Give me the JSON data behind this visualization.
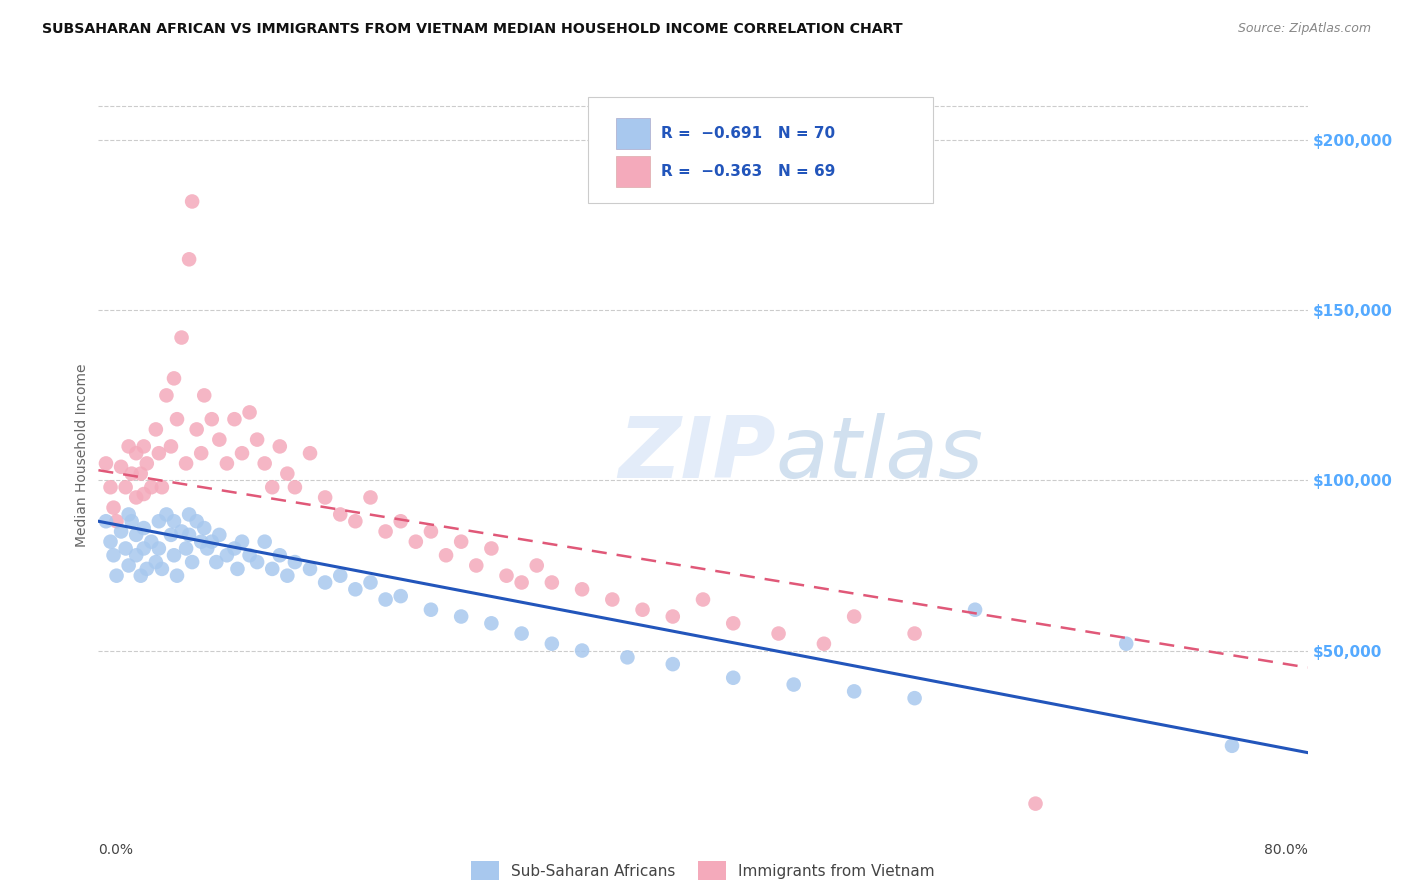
{
  "title": "SUBSAHARAN AFRICAN VS IMMIGRANTS FROM VIETNAM MEDIAN HOUSEHOLD INCOME CORRELATION CHART",
  "source": "Source: ZipAtlas.com",
  "ylabel": "Median Household Income",
  "xlim": [
    0.0,
    0.8
  ],
  "ylim": [
    0,
    215000
  ],
  "blue_color": "#A8C8EE",
  "blue_line_color": "#2255BB",
  "pink_color": "#F4AABB",
  "pink_line_color": "#E05878",
  "right_tick_color": "#55AAFF",
  "yticks": [
    0,
    50000,
    100000,
    150000,
    200000
  ],
  "right_labels": [
    "",
    "$50,000",
    "$100,000",
    "$150,000",
    "$200,000"
  ],
  "legend_label_blue": "R =  −0.691   N = 70",
  "legend_label_pink": "R =  −0.363   N = 69",
  "legend_color": "#2255BB",
  "blue_x": [
    0.005,
    0.008,
    0.01,
    0.012,
    0.015,
    0.018,
    0.02,
    0.02,
    0.022,
    0.025,
    0.025,
    0.028,
    0.03,
    0.03,
    0.032,
    0.035,
    0.038,
    0.04,
    0.04,
    0.042,
    0.045,
    0.048,
    0.05,
    0.05,
    0.052,
    0.055,
    0.058,
    0.06,
    0.06,
    0.062,
    0.065,
    0.068,
    0.07,
    0.072,
    0.075,
    0.078,
    0.08,
    0.085,
    0.09,
    0.092,
    0.095,
    0.1,
    0.105,
    0.11,
    0.115,
    0.12,
    0.125,
    0.13,
    0.14,
    0.15,
    0.16,
    0.17,
    0.18,
    0.19,
    0.2,
    0.22,
    0.24,
    0.26,
    0.28,
    0.3,
    0.32,
    0.35,
    0.38,
    0.42,
    0.46,
    0.5,
    0.54,
    0.58,
    0.68,
    0.75
  ],
  "blue_y": [
    88000,
    82000,
    78000,
    72000,
    85000,
    80000,
    90000,
    75000,
    88000,
    84000,
    78000,
    72000,
    86000,
    80000,
    74000,
    82000,
    76000,
    88000,
    80000,
    74000,
    90000,
    84000,
    88000,
    78000,
    72000,
    85000,
    80000,
    90000,
    84000,
    76000,
    88000,
    82000,
    86000,
    80000,
    82000,
    76000,
    84000,
    78000,
    80000,
    74000,
    82000,
    78000,
    76000,
    82000,
    74000,
    78000,
    72000,
    76000,
    74000,
    70000,
    72000,
    68000,
    70000,
    65000,
    66000,
    62000,
    60000,
    58000,
    55000,
    52000,
    50000,
    48000,
    46000,
    42000,
    40000,
    38000,
    36000,
    62000,
    52000,
    22000
  ],
  "pink_x": [
    0.005,
    0.008,
    0.01,
    0.012,
    0.015,
    0.018,
    0.02,
    0.022,
    0.025,
    0.025,
    0.028,
    0.03,
    0.03,
    0.032,
    0.035,
    0.038,
    0.04,
    0.042,
    0.045,
    0.048,
    0.05,
    0.052,
    0.055,
    0.058,
    0.06,
    0.062,
    0.065,
    0.068,
    0.07,
    0.075,
    0.08,
    0.085,
    0.09,
    0.095,
    0.1,
    0.105,
    0.11,
    0.115,
    0.12,
    0.125,
    0.13,
    0.14,
    0.15,
    0.16,
    0.17,
    0.18,
    0.19,
    0.2,
    0.21,
    0.22,
    0.23,
    0.24,
    0.25,
    0.26,
    0.27,
    0.28,
    0.29,
    0.3,
    0.32,
    0.34,
    0.36,
    0.38,
    0.4,
    0.42,
    0.45,
    0.48,
    0.5,
    0.54,
    0.62
  ],
  "pink_y": [
    105000,
    98000,
    92000,
    88000,
    104000,
    98000,
    110000,
    102000,
    108000,
    95000,
    102000,
    110000,
    96000,
    105000,
    98000,
    115000,
    108000,
    98000,
    125000,
    110000,
    130000,
    118000,
    142000,
    105000,
    165000,
    182000,
    115000,
    108000,
    125000,
    118000,
    112000,
    105000,
    118000,
    108000,
    120000,
    112000,
    105000,
    98000,
    110000,
    102000,
    98000,
    108000,
    95000,
    90000,
    88000,
    95000,
    85000,
    88000,
    82000,
    85000,
    78000,
    82000,
    75000,
    80000,
    72000,
    70000,
    75000,
    70000,
    68000,
    65000,
    62000,
    60000,
    65000,
    58000,
    55000,
    52000,
    60000,
    55000,
    5000
  ]
}
